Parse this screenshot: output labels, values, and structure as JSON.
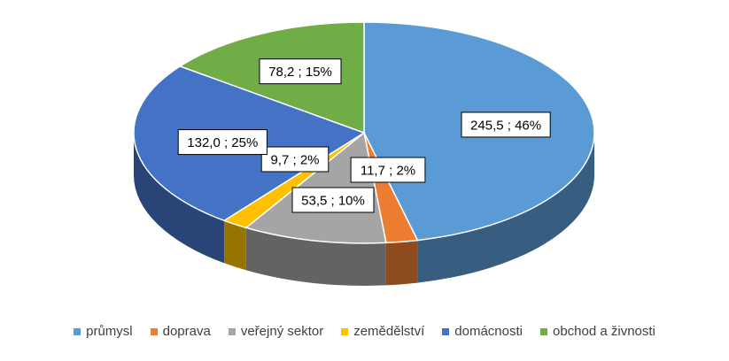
{
  "chart_data": {
    "type": "pie",
    "style": "3d",
    "slices": [
      {
        "label": "průmysl",
        "value": 245.5,
        "percent": 46,
        "display": "245,5 ; 46%",
        "color": "#5B9BD5"
      },
      {
        "label": "doprava",
        "value": 11.7,
        "percent": 2,
        "display": "11,7 ; 2%",
        "color": "#ED7D31"
      },
      {
        "label": "veřejný sektor",
        "value": 53.5,
        "percent": 10,
        "display": "53,5 ; 10%",
        "color": "#A5A5A5"
      },
      {
        "label": "zemědělství",
        "value": 9.7,
        "percent": 2,
        "display": "9,7 ; 2%",
        "color": "#FFC000"
      },
      {
        "label": "domácnosti",
        "value": 132.0,
        "percent": 25,
        "display": "132,0 ; 25%",
        "color": "#4472C4"
      },
      {
        "label": "obchod a živnosti",
        "value": 78.2,
        "percent": 15,
        "display": "78,2 ; 15%",
        "color": "#70AD47"
      }
    ],
    "legend_position": "bottom"
  }
}
